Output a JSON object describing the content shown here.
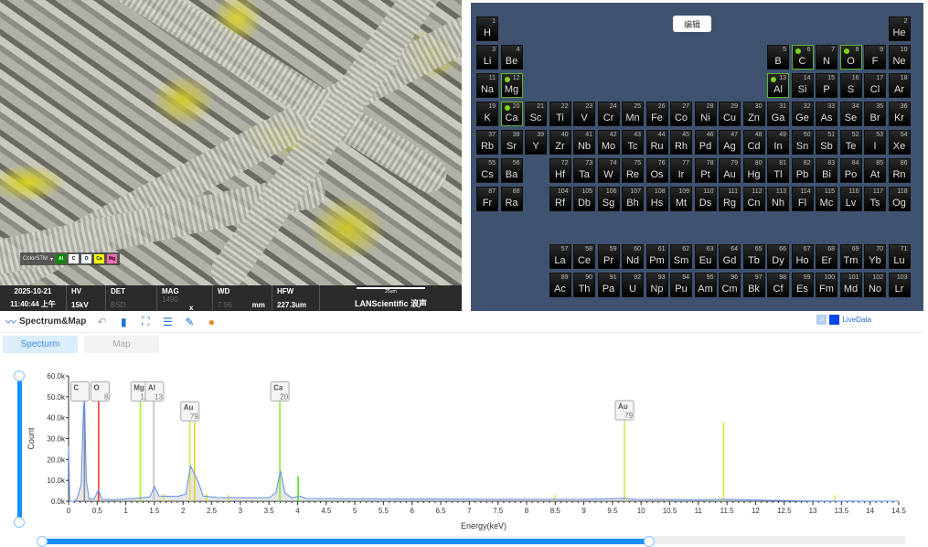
{
  "sem": {
    "colorstm_label": "ColorSTM",
    "chips": [
      {
        "label": "Al",
        "color": "#0a8a0a",
        "text": "#fff"
      },
      {
        "label": "C",
        "color": "#ffffff",
        "text": "#000"
      },
      {
        "label": "O",
        "color": "#eefaff",
        "text": "#000"
      },
      {
        "label": "Ca",
        "color": "#ffff00",
        "text": "#000"
      },
      {
        "label": "Mg",
        "color": "#ff69b4",
        "text": "#000"
      }
    ]
  },
  "infobar": {
    "date": "2025-10-21",
    "time": "11:40:44 上午",
    "hv_label": "HV",
    "hv": "15kV",
    "det_label": "DET",
    "det": "BSD",
    "mag_label": "MAG",
    "mag": "1490",
    "mag_unit": "x",
    "wd_label": "WD",
    "wd": "7.96",
    "wd_unit": "mm",
    "hfw_label": "HFW",
    "hfw": "227.3um",
    "scale": "25um",
    "brand": "LANScientific 浪声"
  },
  "ptable": {
    "edit_label": "编辑",
    "selected": [
      "C",
      "O",
      "Mg",
      "Al",
      "Ca"
    ],
    "elements": [
      [
        "H",
        1,
        1,
        1
      ],
      [
        "He",
        2,
        1,
        18
      ],
      [
        "Li",
        3,
        2,
        1
      ],
      [
        "Be",
        4,
        2,
        2
      ],
      [
        "B",
        5,
        2,
        13
      ],
      [
        "C",
        6,
        2,
        14
      ],
      [
        "N",
        7,
        2,
        15
      ],
      [
        "O",
        8,
        2,
        16
      ],
      [
        "F",
        9,
        2,
        17
      ],
      [
        "Ne",
        10,
        2,
        18
      ],
      [
        "Na",
        11,
        3,
        1
      ],
      [
        "Mg",
        12,
        3,
        2
      ],
      [
        "Al",
        13,
        3,
        13
      ],
      [
        "Si",
        14,
        3,
        14
      ],
      [
        "P",
        15,
        3,
        15
      ],
      [
        "S",
        16,
        3,
        16
      ],
      [
        "Cl",
        17,
        3,
        17
      ],
      [
        "Ar",
        18,
        3,
        18
      ],
      [
        "K",
        19,
        4,
        1
      ],
      [
        "Ca",
        20,
        4,
        2
      ],
      [
        "Sc",
        21,
        4,
        3
      ],
      [
        "Ti",
        22,
        4,
        4
      ],
      [
        "V",
        23,
        4,
        5
      ],
      [
        "Cr",
        24,
        4,
        6
      ],
      [
        "Mn",
        25,
        4,
        7
      ],
      [
        "Fe",
        26,
        4,
        8
      ],
      [
        "Co",
        27,
        4,
        9
      ],
      [
        "Ni",
        28,
        4,
        10
      ],
      [
        "Cu",
        29,
        4,
        11
      ],
      [
        "Zn",
        30,
        4,
        12
      ],
      [
        "Ga",
        31,
        4,
        13
      ],
      [
        "Ge",
        32,
        4,
        14
      ],
      [
        "As",
        33,
        4,
        15
      ],
      [
        "Se",
        34,
        4,
        16
      ],
      [
        "Br",
        35,
        4,
        17
      ],
      [
        "Kr",
        36,
        4,
        18
      ],
      [
        "Rb",
        37,
        5,
        1
      ],
      [
        "Sr",
        38,
        5,
        2
      ],
      [
        "Y",
        39,
        5,
        3
      ],
      [
        "Zr",
        40,
        5,
        4
      ],
      [
        "Nb",
        41,
        5,
        5
      ],
      [
        "Mo",
        42,
        5,
        6
      ],
      [
        "Tc",
        43,
        5,
        7
      ],
      [
        "Ru",
        44,
        5,
        8
      ],
      [
        "Rh",
        45,
        5,
        9
      ],
      [
        "Pd",
        46,
        5,
        10
      ],
      [
        "Ag",
        47,
        5,
        11
      ],
      [
        "Cd",
        48,
        5,
        12
      ],
      [
        "In",
        49,
        5,
        13
      ],
      [
        "Sn",
        50,
        5,
        14
      ],
      [
        "Sb",
        51,
        5,
        15
      ],
      [
        "Te",
        52,
        5,
        16
      ],
      [
        "I",
        53,
        5,
        17
      ],
      [
        "Xe",
        54,
        5,
        18
      ],
      [
        "Cs",
        55,
        6,
        1
      ],
      [
        "Ba",
        56,
        6,
        2
      ],
      [
        "Hf",
        72,
        6,
        4
      ],
      [
        "Ta",
        73,
        6,
        5
      ],
      [
        "W",
        74,
        6,
        6
      ],
      [
        "Re",
        75,
        6,
        7
      ],
      [
        "Os",
        76,
        6,
        8
      ],
      [
        "Ir",
        77,
        6,
        9
      ],
      [
        "Pt",
        78,
        6,
        10
      ],
      [
        "Au",
        79,
        6,
        11
      ],
      [
        "Hg",
        80,
        6,
        12
      ],
      [
        "Tl",
        81,
        6,
        13
      ],
      [
        "Pb",
        82,
        6,
        14
      ],
      [
        "Bi",
        83,
        6,
        15
      ],
      [
        "Po",
        84,
        6,
        16
      ],
      [
        "At",
        85,
        6,
        17
      ],
      [
        "Rn",
        86,
        6,
        18
      ],
      [
        "Fr",
        87,
        7,
        1
      ],
      [
        "Ra",
        88,
        7,
        2
      ],
      [
        "Rf",
        104,
        7,
        4
      ],
      [
        "Db",
        105,
        7,
        5
      ],
      [
        "Sg",
        106,
        7,
        6
      ],
      [
        "Bh",
        107,
        7,
        7
      ],
      [
        "Hs",
        108,
        7,
        8
      ],
      [
        "Mt",
        109,
        7,
        9
      ],
      [
        "Ds",
        110,
        7,
        10
      ],
      [
        "Rg",
        111,
        7,
        11
      ],
      [
        "Cn",
        112,
        7,
        12
      ],
      [
        "Nh",
        113,
        7,
        13
      ],
      [
        "Fl",
        114,
        7,
        14
      ],
      [
        "Mc",
        115,
        7,
        15
      ],
      [
        "Lv",
        116,
        7,
        16
      ],
      [
        "Ts",
        117,
        7,
        17
      ],
      [
        "Og",
        118,
        7,
        18
      ],
      [
        "La",
        57,
        9,
        4
      ],
      [
        "Ce",
        58,
        9,
        5
      ],
      [
        "Pr",
        59,
        9,
        6
      ],
      [
        "Nd",
        60,
        9,
        7
      ],
      [
        "Pm",
        61,
        9,
        8
      ],
      [
        "Sm",
        62,
        9,
        9
      ],
      [
        "Eu",
        63,
        9,
        10
      ],
      [
        "Gd",
        64,
        9,
        11
      ],
      [
        "Tb",
        65,
        9,
        12
      ],
      [
        "Dy",
        66,
        9,
        13
      ],
      [
        "Ho",
        67,
        9,
        14
      ],
      [
        "Er",
        68,
        9,
        15
      ],
      [
        "Tm",
        69,
        9,
        16
      ],
      [
        "Yb",
        70,
        9,
        17
      ],
      [
        "Lu",
        71,
        9,
        18
      ],
      [
        "Ac",
        89,
        10,
        4
      ],
      [
        "Th",
        90,
        10,
        5
      ],
      [
        "Pa",
        91,
        10,
        6
      ],
      [
        "U",
        92,
        10,
        7
      ],
      [
        "Np",
        93,
        10,
        8
      ],
      [
        "Pu",
        94,
        10,
        9
      ],
      [
        "Am",
        95,
        10,
        10
      ],
      [
        "Cm",
        96,
        10,
        11
      ],
      [
        "Bk",
        97,
        10,
        12
      ],
      [
        "Cf",
        98,
        10,
        13
      ],
      [
        "Es",
        99,
        10,
        14
      ],
      [
        "Fm",
        100,
        10,
        15
      ],
      [
        "Md",
        101,
        10,
        16
      ],
      [
        "No",
        102,
        10,
        17
      ],
      [
        "Lr",
        103,
        10,
        18
      ]
    ]
  },
  "toolbar": {
    "title": "Spectrum&Map",
    "live_label": "LiveData"
  },
  "tabs": [
    "Specturm",
    "Map"
  ],
  "chart_data": {
    "type": "line",
    "xlabel": "Energy(keV)",
    "ylabel": "Count",
    "xlim": [
      0,
      14.5
    ],
    "ylim": [
      0,
      60000
    ],
    "xticks": [
      0,
      0.5,
      1,
      1.5,
      2,
      2.5,
      3,
      3.5,
      4,
      4.5,
      5,
      5.5,
      6,
      6.5,
      7,
      7.5,
      8,
      8.5,
      9,
      9.5,
      10,
      10.5,
      11,
      11.5,
      12,
      12.5,
      13,
      13.5,
      14,
      14.5
    ],
    "yticks": [
      "0.0k",
      "10.0k",
      "20.0k",
      "30.0k",
      "40.0k",
      "50.0k",
      "60.0k"
    ],
    "spectrum": [
      [
        0,
        26000
      ],
      [
        0.02,
        0
      ],
      [
        0.1,
        0
      ],
      [
        0.15,
        1500
      ],
      [
        0.22,
        8000
      ],
      [
        0.26,
        45000
      ],
      [
        0.28,
        48000
      ],
      [
        0.31,
        10000
      ],
      [
        0.36,
        1000
      ],
      [
        0.45,
        1200
      ],
      [
        0.52,
        5500
      ],
      [
        0.58,
        1000
      ],
      [
        0.8,
        800
      ],
      [
        1.2,
        1500
      ],
      [
        1.42,
        2000
      ],
      [
        1.5,
        7000
      ],
      [
        1.58,
        2500
      ],
      [
        1.9,
        2300
      ],
      [
        2.05,
        3500
      ],
      [
        2.13,
        17000
      ],
      [
        2.2,
        13000
      ],
      [
        2.27,
        9000
      ],
      [
        2.35,
        2500
      ],
      [
        2.6,
        1800
      ],
      [
        3.0,
        1700
      ],
      [
        3.5,
        1700
      ],
      [
        3.62,
        4000
      ],
      [
        3.7,
        14500
      ],
      [
        3.78,
        4000
      ],
      [
        3.9,
        1600
      ],
      [
        4.03,
        2500
      ],
      [
        4.15,
        1300
      ],
      [
        5,
        1200
      ],
      [
        7,
        1000
      ],
      [
        9,
        900
      ],
      [
        9.7,
        1400
      ],
      [
        9.9,
        900
      ],
      [
        11,
        800
      ],
      [
        11.5,
        900
      ],
      [
        12,
        600
      ],
      [
        12.5,
        300
      ],
      [
        13,
        100
      ],
      [
        13.5,
        50
      ],
      [
        14.5,
        0
      ]
    ],
    "markers": [
      {
        "e": 0.277,
        "h": 48000,
        "color": "#888888"
      },
      {
        "e": 0.525,
        "h": 48000,
        "color": "#ff2a2a"
      },
      {
        "e": 1.254,
        "h": 48000,
        "color": "#9df012"
      },
      {
        "e": 1.487,
        "h": 48000,
        "color": "#c8b8b8"
      },
      {
        "e": 1.66,
        "h": 3500,
        "color": "#e0e040"
      },
      {
        "e": 2.12,
        "h": 38500,
        "color": "#e0e040"
      },
      {
        "e": 2.2,
        "h": 38000,
        "color": "#e0d020"
      },
      {
        "e": 2.41,
        "h": 3500,
        "color": "#e0e040"
      },
      {
        "e": 2.79,
        "h": 3000,
        "color": "#e0e040"
      },
      {
        "e": 3.69,
        "h": 48000,
        "color": "#7ee82a"
      },
      {
        "e": 4.01,
        "h": 12000,
        "color": "#44dd22"
      },
      {
        "e": 8.49,
        "h": 3000,
        "color": "#e0e040"
      },
      {
        "e": 9.71,
        "h": 39000,
        "color": "#e0e040"
      },
      {
        "e": 11.44,
        "h": 38000,
        "color": "#e0e040"
      },
      {
        "e": 13.38,
        "h": 3000,
        "color": "#e0e040"
      }
    ],
    "labels": [
      {
        "sym": "C",
        "num": "",
        "e": 0.2,
        "h": 48000
      },
      {
        "sym": "O",
        "num": "8",
        "e": 0.55,
        "h": 48000
      },
      {
        "sym": "Mg",
        "num": "12",
        "e": 1.25,
        "h": 48000
      },
      {
        "sym": "Al",
        "num": "13",
        "e": 1.5,
        "h": 48000
      },
      {
        "sym": "Au",
        "num": "79",
        "e": 2.12,
        "h": 38500
      },
      {
        "sym": "Ca",
        "num": "20",
        "e": 3.69,
        "h": 48000
      },
      {
        "sym": "Au",
        "num": "79",
        "e": 9.71,
        "h": 39000
      }
    ]
  }
}
